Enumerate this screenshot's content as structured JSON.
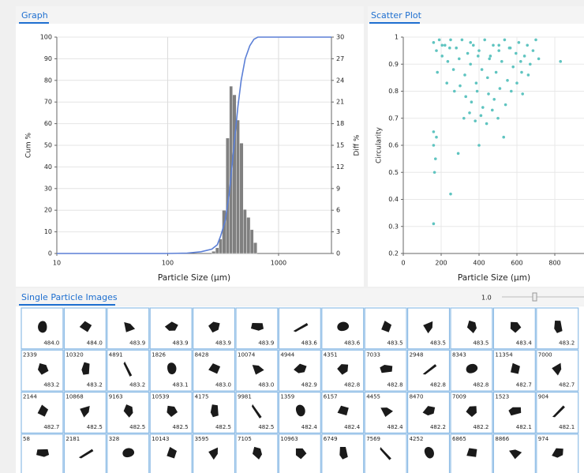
{
  "chart_data": [
    {
      "type": "combo",
      "title": "Graph",
      "xlabel": "Particle Size (µm)",
      "ylabel": "Cum %",
      "y2label": "Diff %",
      "xscale": "log",
      "xlim": [
        10,
        3000
      ],
      "xticks": [
        10,
        100,
        1000
      ],
      "ylim": [
        0,
        100
      ],
      "yticks": [
        0,
        10,
        20,
        30,
        40,
        50,
        60,
        70,
        80,
        90,
        100
      ],
      "y2lim": [
        0,
        30
      ],
      "y2ticks": [
        0,
        3,
        6,
        9,
        12,
        15,
        18,
        21,
        24,
        27,
        30
      ],
      "grid": true,
      "series": [
        {
          "type": "histogram",
          "axis": "y2",
          "color": "#808080",
          "bins": [
            250,
            270,
            290,
            310,
            335,
            360,
            385,
            415,
            445,
            480,
            515,
            555,
            595,
            640
          ],
          "values": [
            0.3,
            0.8,
            2,
            6,
            16,
            23.2,
            22,
            18.5,
            15.3,
            6.1,
            5,
            3.3,
            1.5
          ]
        },
        {
          "type": "line",
          "color": "#5b7fd6",
          "x": [
            10,
            100,
            150,
            200,
            250,
            280,
            300,
            330,
            360,
            380,
            400,
            430,
            460,
            500,
            550,
            600,
            650,
            700,
            1000,
            3000
          ],
          "values": [
            0,
            0,
            0.2,
            0.8,
            2,
            4,
            8,
            15,
            28,
            40,
            52,
            68,
            80,
            90,
            96,
            99,
            100,
            100,
            100,
            100
          ]
        }
      ]
    },
    {
      "type": "scatter",
      "title": "Scatter Plot",
      "xlabel": "Particle Size (µm)",
      "ylabel": "Circularity",
      "color": "#5fc4c0",
      "grid": true,
      "xlim": [
        0,
        950
      ],
      "xticks": [
        0,
        200,
        400,
        600,
        800
      ],
      "ylim": [
        0.2,
        1
      ],
      "yticks": [
        0.2,
        0.3,
        0.4,
        0.5,
        0.6,
        0.7,
        0.8,
        0.9,
        1
      ],
      "x": [
        160,
        175,
        190,
        205,
        220,
        235,
        250,
        265,
        280,
        295,
        310,
        325,
        340,
        355,
        370,
        385,
        400,
        415,
        430,
        445,
        460,
        475,
        490,
        505,
        520,
        535,
        550,
        565,
        580,
        595,
        610,
        625,
        640,
        655,
        670,
        685,
        700,
        715,
        180,
        230,
        270,
        300,
        330,
        360,
        390,
        420,
        450,
        480,
        510,
        540,
        570,
        600,
        630,
        660,
        350,
        380,
        410,
        440,
        470,
        500,
        160,
        250,
        165,
        170,
        160,
        175,
        160,
        290,
        400,
        320,
        530,
        830,
        455,
        395,
        245,
        620,
        205,
        355,
        505,
        560
      ],
      "values": [
        0.98,
        0.95,
        0.99,
        0.93,
        0.97,
        0.91,
        0.99,
        0.88,
        0.96,
        0.92,
        0.99,
        0.86,
        0.94,
        0.9,
        0.97,
        0.83,
        0.95,
        0.88,
        0.99,
        0.85,
        0.93,
        0.97,
        0.87,
        0.95,
        0.91,
        0.99,
        0.84,
        0.96,
        0.89,
        0.94,
        0.98,
        0.87,
        0.93,
        0.97,
        0.9,
        0.95,
        0.99,
        0.92,
        0.87,
        0.83,
        0.8,
        0.82,
        0.78,
        0.76,
        0.8,
        0.74,
        0.79,
        0.77,
        0.81,
        0.75,
        0.8,
        0.83,
        0.79,
        0.86,
        0.72,
        0.69,
        0.71,
        0.68,
        0.73,
        0.7,
        0.31,
        0.42,
        0.5,
        0.55,
        0.6,
        0.63,
        0.65,
        0.57,
        0.6,
        0.7,
        0.63,
        0.91,
        0.92,
        0.93,
        0.96,
        0.91,
        0.97,
        0.98,
        0.97,
        0.96
      ]
    }
  ],
  "particle_images": {
    "title": "Single Particle Images",
    "zoom": "1.0",
    "rows": [
      [
        {
          "value": "484.0"
        },
        {
          "value": "484.0"
        },
        {
          "value": "483.9"
        },
        {
          "value": "483.9"
        },
        {
          "value": "483.9"
        },
        {
          "value": "483.9"
        },
        {
          "value": "483.6"
        },
        {
          "value": "483.6"
        },
        {
          "value": "483.5"
        },
        {
          "value": "483.5"
        },
        {
          "value": "483.5"
        },
        {
          "value": "483.4"
        },
        {
          "value": "483.2"
        }
      ],
      [
        {
          "id": "2339",
          "value": "483.2"
        },
        {
          "id": "10320",
          "value": "483.2"
        },
        {
          "id": "4891",
          "value": "483.2"
        },
        {
          "id": "1826",
          "value": "483.1"
        },
        {
          "id": "8428",
          "value": "483.0"
        },
        {
          "id": "10074",
          "value": "483.0"
        },
        {
          "id": "4944",
          "value": "482.9"
        },
        {
          "id": "4351",
          "value": "482.8"
        },
        {
          "id": "7033",
          "value": "482.8"
        },
        {
          "id": "2948",
          "value": "482.8"
        },
        {
          "id": "8343",
          "value": "482.8"
        },
        {
          "id": "11354",
          "value": "482.7"
        },
        {
          "id": "7000",
          "value": "482.7"
        }
      ],
      [
        {
          "id": "2144",
          "value": "482.7"
        },
        {
          "id": "10868",
          "value": "482.5"
        },
        {
          "id": "9163",
          "value": "482.5"
        },
        {
          "id": "10539",
          "value": "482.5"
        },
        {
          "id": "4175",
          "value": "482.5"
        },
        {
          "id": "9981",
          "value": "482.5"
        },
        {
          "id": "1359",
          "value": "482.4"
        },
        {
          "id": "6157",
          "value": "482.4"
        },
        {
          "id": "4455",
          "value": "482.4"
        },
        {
          "id": "8470",
          "value": "482.2"
        },
        {
          "id": "7009",
          "value": "482.2"
        },
        {
          "id": "1523",
          "value": "482.1"
        },
        {
          "id": "904",
          "value": "482.1"
        }
      ],
      [
        {
          "id": "58"
        },
        {
          "id": "2181"
        },
        {
          "id": "328"
        },
        {
          "id": "10143"
        },
        {
          "id": "3595"
        },
        {
          "id": "7105"
        },
        {
          "id": "10963"
        },
        {
          "id": "6749"
        },
        {
          "id": "7569"
        },
        {
          "id": "4252"
        },
        {
          "id": "6865"
        },
        {
          "id": "8866"
        },
        {
          "id": "974"
        }
      ]
    ]
  }
}
